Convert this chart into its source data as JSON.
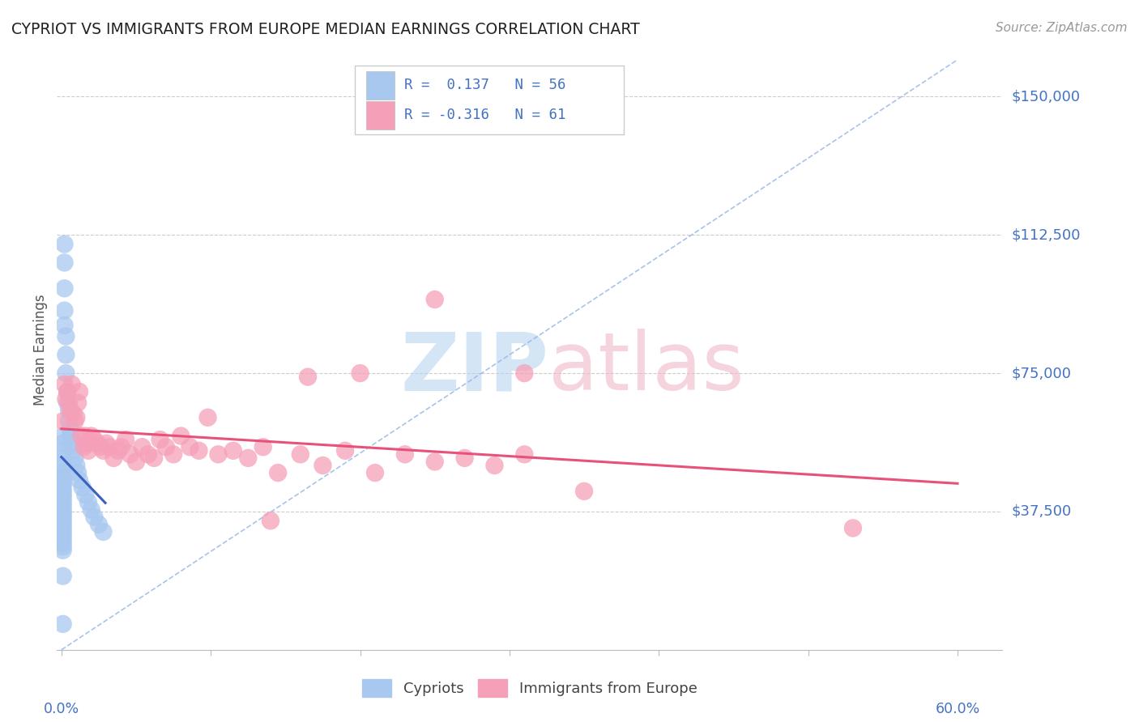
{
  "title": "CYPRIOT VS IMMIGRANTS FROM EUROPE MEDIAN EARNINGS CORRELATION CHART",
  "source": "Source: ZipAtlas.com",
  "ylabel": "Median Earnings",
  "ytick_labels": [
    "$37,500",
    "$75,000",
    "$112,500",
    "$150,000"
  ],
  "ytick_values": [
    37500,
    75000,
    112500,
    150000
  ],
  "ymin": 0,
  "ymax": 162500,
  "xmin": -0.003,
  "xmax": 0.63,
  "color_cypriot": "#A8C8F0",
  "color_europe": "#F5A0B8",
  "color_trendline_cypriot": "#3A5FBF",
  "color_trendline_europe": "#E8527A",
  "color_dashed": "#99B8E8",
  "color_axis_labels": "#4472C4",
  "legend_line1": "R =  0.137   N = 56",
  "legend_line2": "R = -0.316   N = 61",
  "cypriot_x": [
    0.001,
    0.001,
    0.001,
    0.001,
    0.001,
    0.001,
    0.001,
    0.001,
    0.001,
    0.001,
    0.001,
    0.001,
    0.001,
    0.001,
    0.001,
    0.001,
    0.001,
    0.001,
    0.001,
    0.001,
    0.001,
    0.001,
    0.001,
    0.001,
    0.001,
    0.001,
    0.001,
    0.002,
    0.002,
    0.002,
    0.002,
    0.002,
    0.003,
    0.003,
    0.003,
    0.004,
    0.004,
    0.005,
    0.005,
    0.006,
    0.006,
    0.007,
    0.008,
    0.009,
    0.01,
    0.011,
    0.012,
    0.014,
    0.016,
    0.018,
    0.02,
    0.022,
    0.025,
    0.028,
    0.001,
    0.001
  ],
  "cypriot_y": [
    58000,
    56000,
    54000,
    52000,
    50000,
    48000,
    47000,
    46000,
    45000,
    44000,
    43000,
    42000,
    41000,
    40000,
    39000,
    38000,
    37000,
    36000,
    35000,
    34000,
    33000,
    32000,
    31000,
    30000,
    29000,
    28000,
    27000,
    110000,
    105000,
    98000,
    92000,
    88000,
    85000,
    80000,
    75000,
    70000,
    67000,
    65000,
    62000,
    60000,
    58000,
    56000,
    54000,
    52000,
    50000,
    48000,
    46000,
    44000,
    42000,
    40000,
    38000,
    36000,
    34000,
    32000,
    20000,
    7000
  ],
  "europe_x": [
    0.001,
    0.002,
    0.003,
    0.004,
    0.005,
    0.006,
    0.007,
    0.008,
    0.009,
    0.01,
    0.011,
    0.012,
    0.013,
    0.015,
    0.016,
    0.017,
    0.018,
    0.02,
    0.022,
    0.024,
    0.026,
    0.028,
    0.03,
    0.032,
    0.035,
    0.038,
    0.04,
    0.043,
    0.046,
    0.05,
    0.054,
    0.058,
    0.062,
    0.066,
    0.07,
    0.075,
    0.08,
    0.086,
    0.092,
    0.098,
    0.105,
    0.115,
    0.125,
    0.135,
    0.145,
    0.16,
    0.175,
    0.19,
    0.21,
    0.23,
    0.25,
    0.27,
    0.29,
    0.31,
    0.25,
    0.31,
    0.35,
    0.53,
    0.2,
    0.165,
    0.14
  ],
  "europe_y": [
    62000,
    72000,
    68000,
    70000,
    67000,
    65000,
    72000,
    64000,
    62000,
    63000,
    67000,
    70000,
    58000,
    55000,
    58000,
    56000,
    54000,
    58000,
    57000,
    56000,
    55000,
    54000,
    56000,
    55000,
    52000,
    54000,
    55000,
    57000,
    53000,
    51000,
    55000,
    53000,
    52000,
    57000,
    55000,
    53000,
    58000,
    55000,
    54000,
    63000,
    53000,
    54000,
    52000,
    55000,
    48000,
    53000,
    50000,
    54000,
    48000,
    53000,
    51000,
    52000,
    50000,
    53000,
    95000,
    75000,
    43000,
    33000,
    75000,
    74000,
    35000
  ]
}
